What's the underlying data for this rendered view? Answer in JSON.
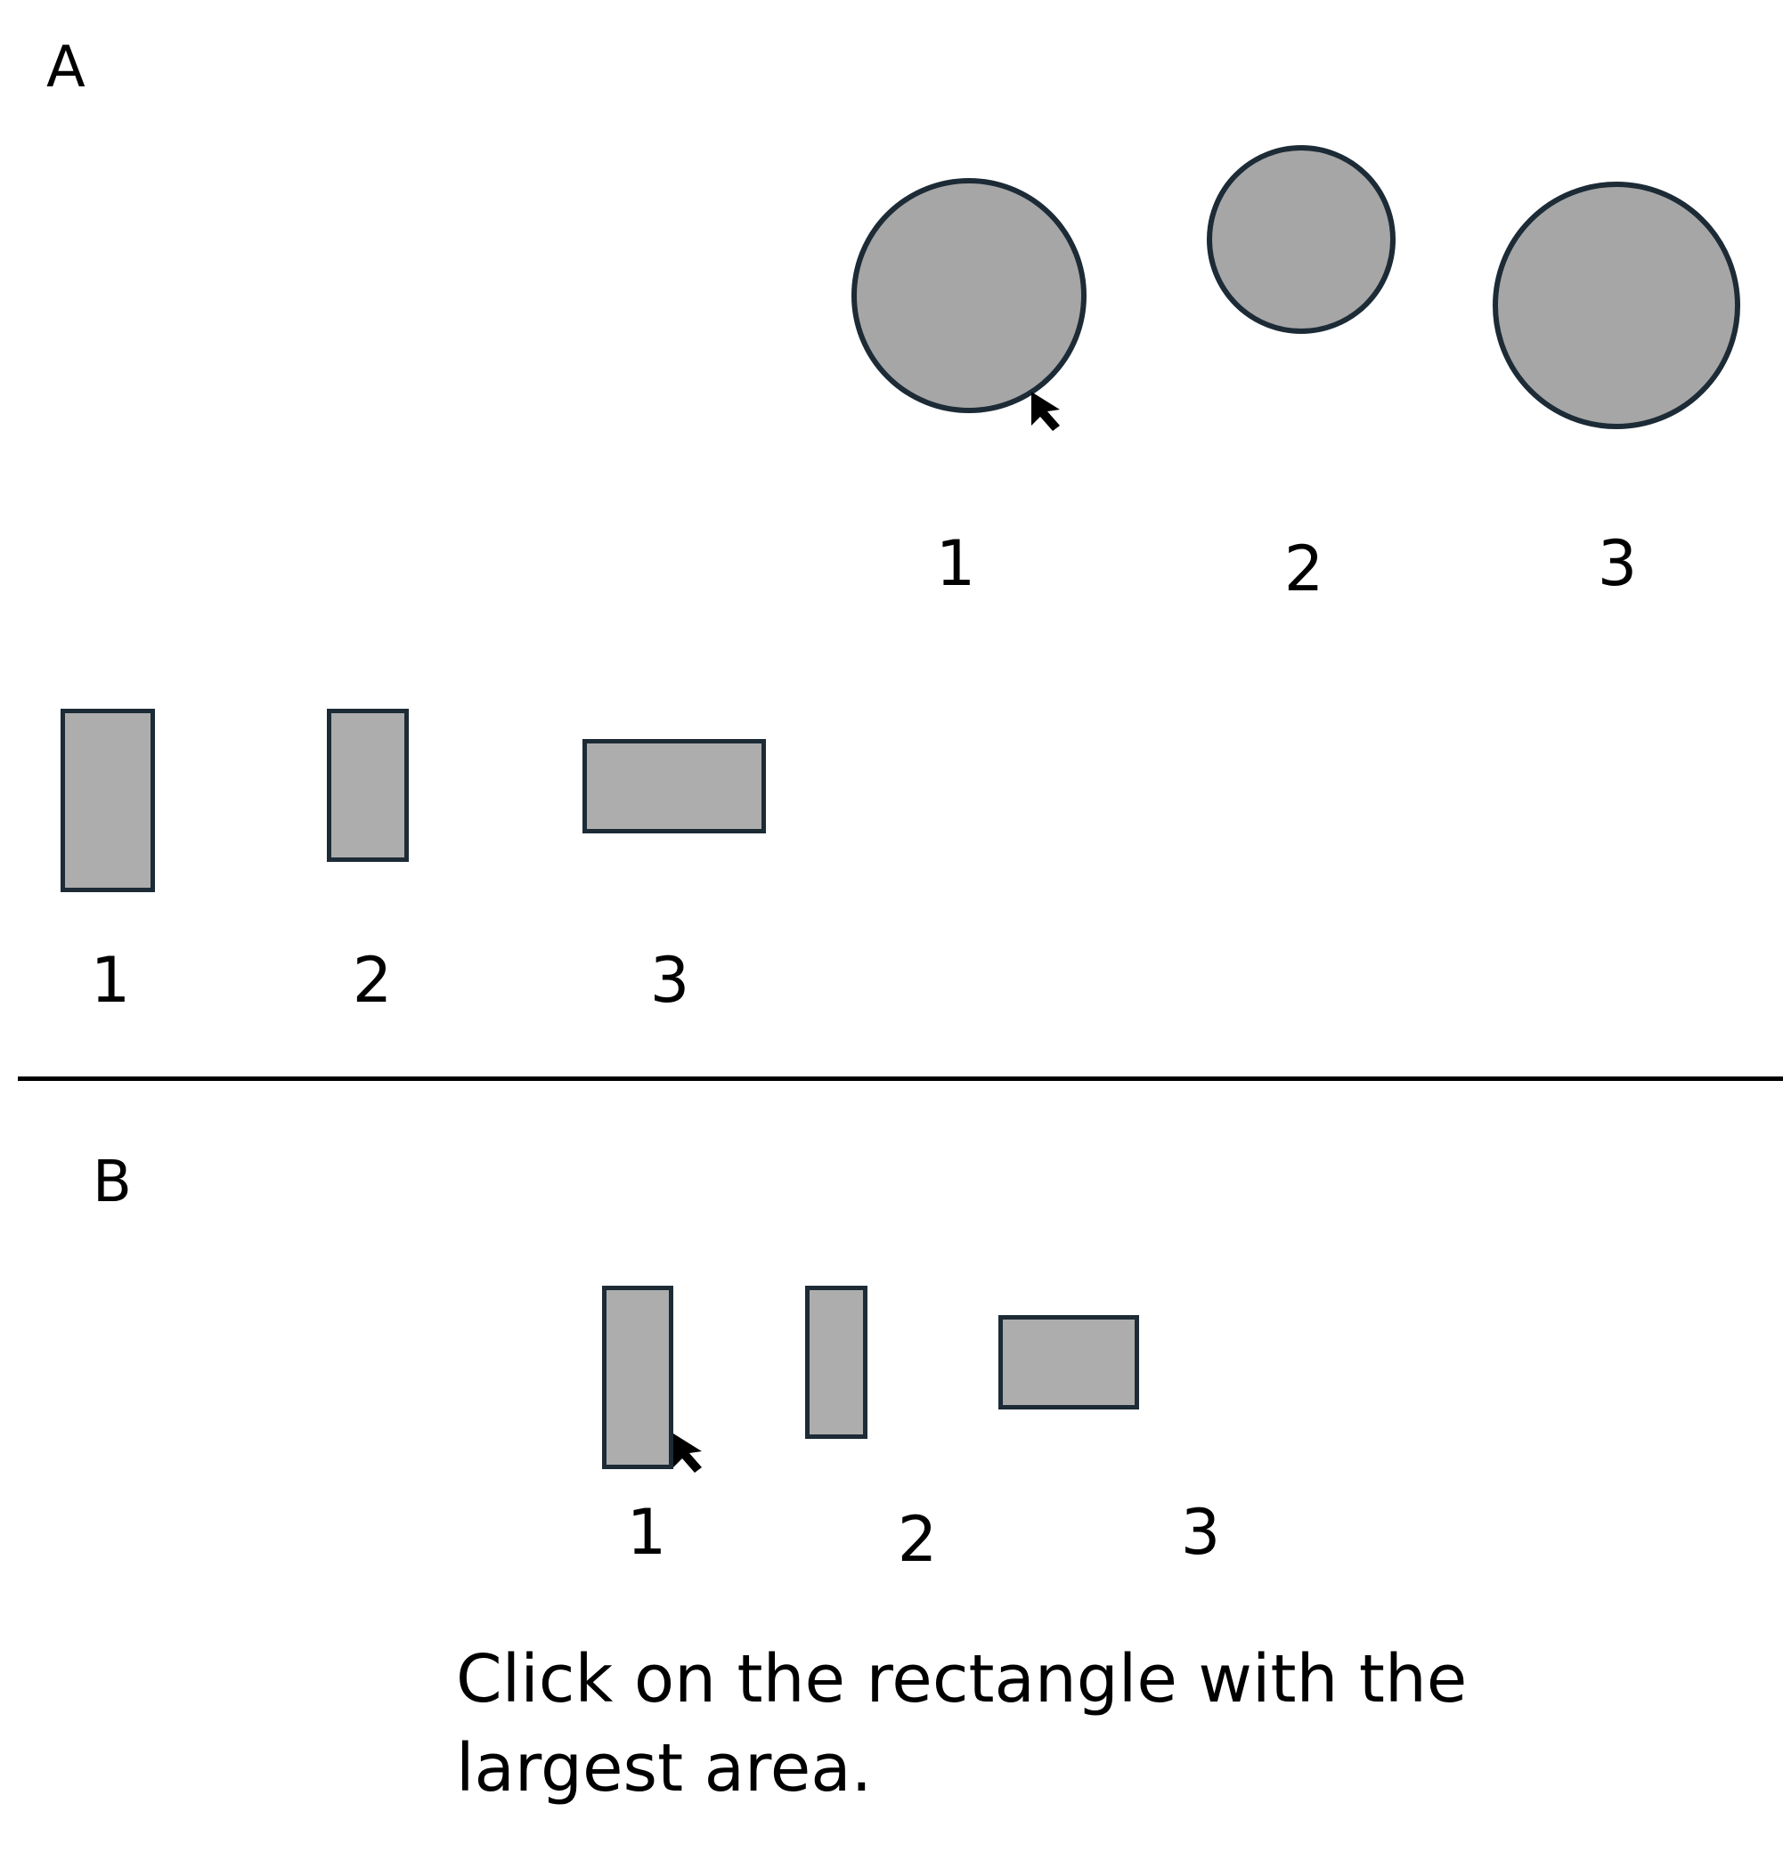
{
  "panel_a": {
    "label": "A",
    "circles": [
      {
        "label": "1"
      },
      {
        "label": "2"
      },
      {
        "label": "3"
      }
    ],
    "rectangles": [
      {
        "label": "1"
      },
      {
        "label": "2"
      },
      {
        "label": "3"
      }
    ],
    "cursor_icon": "cursor-arrow-icon"
  },
  "panel_b": {
    "label": "B",
    "rectangles": [
      {
        "label": "1"
      },
      {
        "label": "2"
      },
      {
        "label": "3"
      }
    ],
    "cursor_icon": "cursor-arrow-icon",
    "instruction": "Click on the rectangle with the\nlargest area."
  },
  "colors": {
    "shape_fill": "#a6a6a6",
    "shape_stroke": "#1c2b36",
    "divider": "#000000"
  }
}
